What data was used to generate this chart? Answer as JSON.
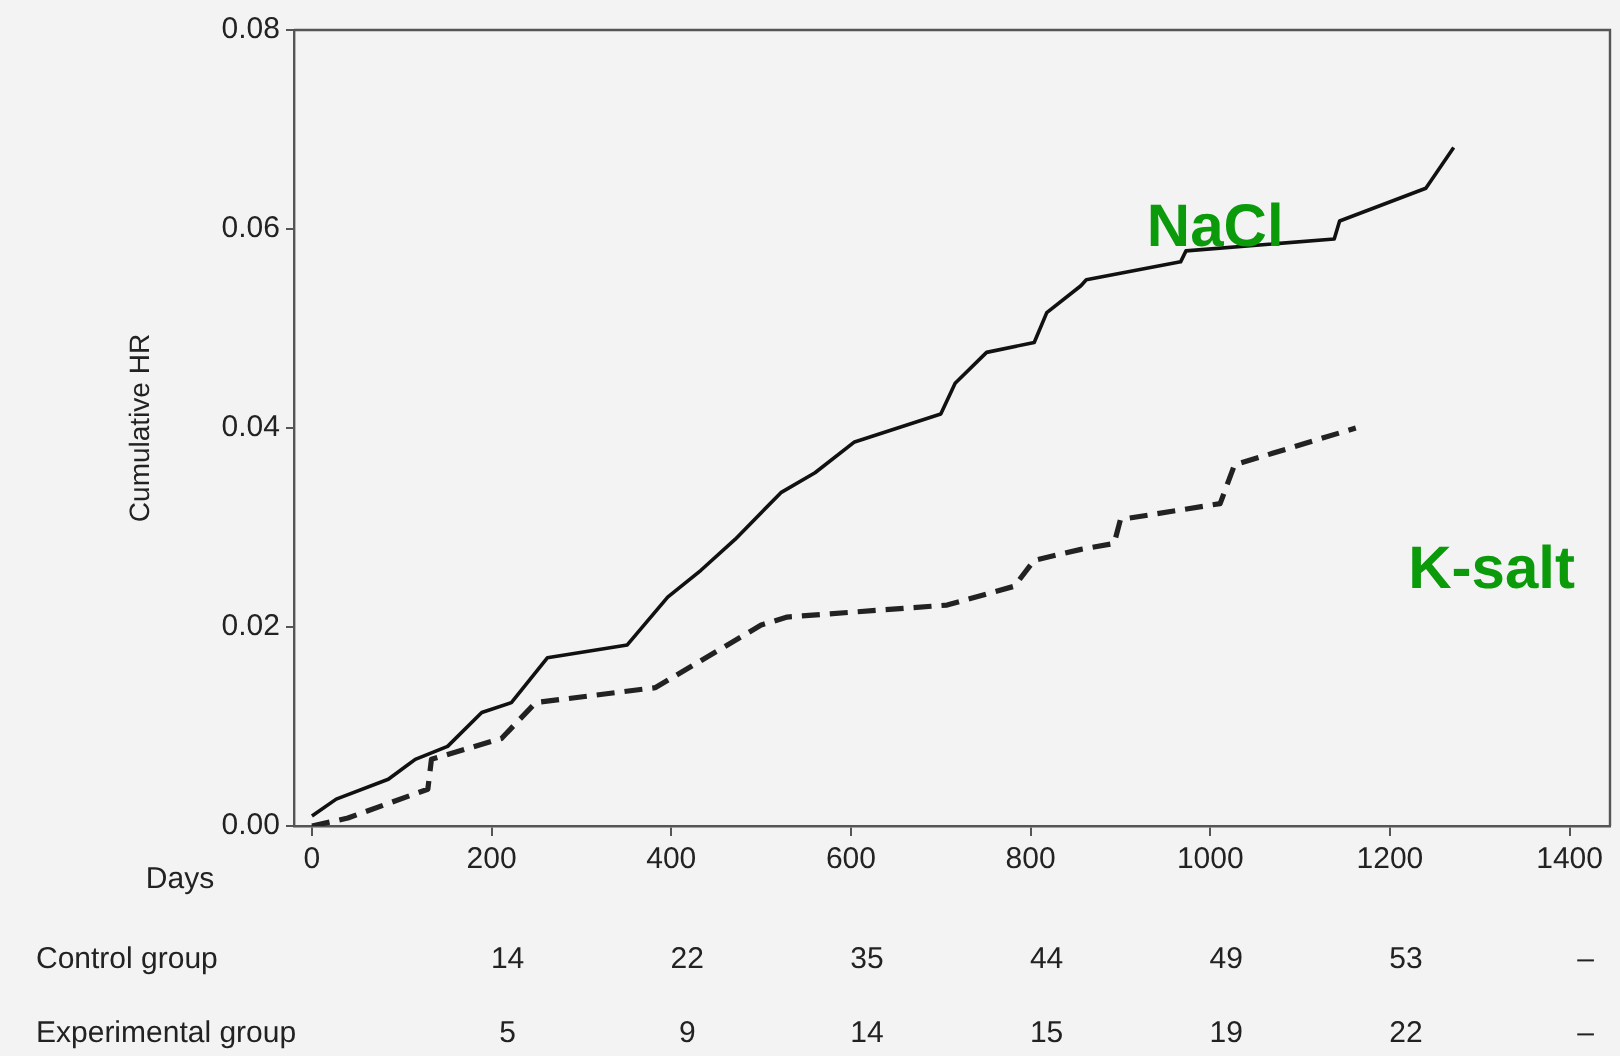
{
  "chart_data": {
    "type": "line",
    "xlabel": "Days",
    "ylabel": "Cumulative HR",
    "xlim": [
      -20,
      1445
    ],
    "ylim": [
      0,
      0.08
    ],
    "xticks": [
      0,
      200,
      400,
      600,
      800,
      1000,
      1200,
      1400
    ],
    "yticks": [
      {
        "value": 0,
        "label": "0.00"
      },
      {
        "value": 0.02,
        "label": "0.02"
      },
      {
        "value": 0.04,
        "label": "0.04"
      },
      {
        "value": 0.06,
        "label": "0.06"
      },
      {
        "value": 0.08,
        "label": "0.08"
      }
    ],
    "grid": false,
    "legend": false,
    "marker": "none",
    "series": [
      {
        "name": "NaCl",
        "color": "#111111",
        "line_style": "solid",
        "x": [
          0,
          27,
          85,
          115,
          151,
          189,
          222,
          262,
          351,
          396,
          433,
          471,
          522,
          560,
          604,
          700,
          716,
          751,
          804,
          818,
          856,
          862,
          967,
          973,
          1138,
          1144,
          1240,
          1271
        ],
        "values": [
          0.001,
          0.0027,
          0.0047,
          0.0067,
          0.008,
          0.0114,
          0.0124,
          0.0169,
          0.0182,
          0.023,
          0.0257,
          0.0288,
          0.0335,
          0.0355,
          0.0386,
          0.0414,
          0.0445,
          0.0476,
          0.0486,
          0.0516,
          0.0543,
          0.0549,
          0.0567,
          0.0578,
          0.059,
          0.0608,
          0.0641,
          0.0682
        ]
      },
      {
        "name": "K-salt",
        "color": "#222222",
        "line_style": "dashed",
        "x": [
          0,
          40,
          129,
          133,
          211,
          249,
          382,
          500,
          529,
          707,
          782,
          804,
          856,
          893,
          900,
          1011,
          1027,
          1162
        ],
        "values": [
          0,
          0.0008,
          0.0037,
          0.0067,
          0.0088,
          0.0124,
          0.0139,
          0.0202,
          0.021,
          0.0222,
          0.0241,
          0.0267,
          0.0278,
          0.0284,
          0.0308,
          0.0324,
          0.0363,
          0.04
        ]
      }
    ],
    "annotations": [
      "Control group",
      "14",
      "22",
      "35",
      "44",
      "49",
      "53",
      "–",
      "Experimental group",
      "5",
      "9",
      "14",
      "15",
      "19",
      "22",
      "–"
    ]
  }
}
